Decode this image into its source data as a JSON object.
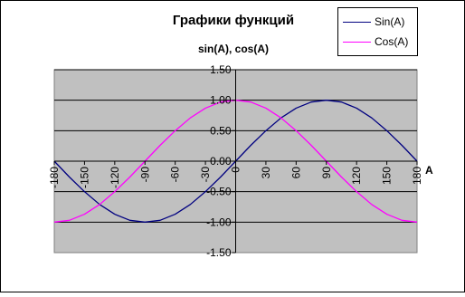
{
  "chart_data": {
    "type": "line",
    "title": "Графики функций",
    "subtitle": "sin(A), cos(A)",
    "xlabel": "A",
    "ylabel": "",
    "x": [
      -180,
      -165,
      -150,
      -135,
      -120,
      -105,
      -90,
      -75,
      -60,
      -45,
      -30,
      -15,
      0,
      15,
      30,
      45,
      60,
      75,
      90,
      105,
      120,
      135,
      150,
      165,
      180
    ],
    "xticks": [
      "-180",
      "-150",
      "-120",
      "-90",
      "-60",
      "-30",
      "0",
      "30",
      "60",
      "90",
      "120",
      "150",
      "180"
    ],
    "xtick_values": [
      -180,
      -150,
      -120,
      -90,
      -60,
      -30,
      0,
      30,
      60,
      90,
      120,
      150,
      180
    ],
    "yticks": [
      "1.50",
      "1.00",
      "0.50",
      "0.00",
      "-0.50",
      "-1.00",
      "-1.50"
    ],
    "ytick_values": [
      1.5,
      1.0,
      0.5,
      0.0,
      -0.5,
      -1.0,
      -1.5
    ],
    "xlim": [
      -180,
      180
    ],
    "ylim": [
      -1.5,
      1.5
    ],
    "grid": true,
    "plot_background": "#c0c0c0",
    "legend_position": "top-right",
    "series": [
      {
        "name": "Sin(A)",
        "color": "#000080",
        "values": [
          0.0,
          -0.26,
          -0.5,
          -0.71,
          -0.87,
          -0.97,
          -1.0,
          -0.97,
          -0.87,
          -0.71,
          -0.5,
          -0.26,
          0.0,
          0.26,
          0.5,
          0.71,
          0.87,
          0.97,
          1.0,
          0.97,
          0.87,
          0.71,
          0.5,
          0.26,
          0.0
        ]
      },
      {
        "name": "Cos(A)",
        "color": "#ff00ff",
        "values": [
          -1.0,
          -0.97,
          -0.87,
          -0.71,
          -0.5,
          -0.26,
          0.0,
          0.26,
          0.5,
          0.71,
          0.87,
          0.97,
          1.0,
          0.97,
          0.87,
          0.71,
          0.5,
          0.26,
          0.0,
          -0.26,
          -0.5,
          -0.71,
          -0.87,
          -0.97,
          -1.0
        ]
      }
    ]
  }
}
